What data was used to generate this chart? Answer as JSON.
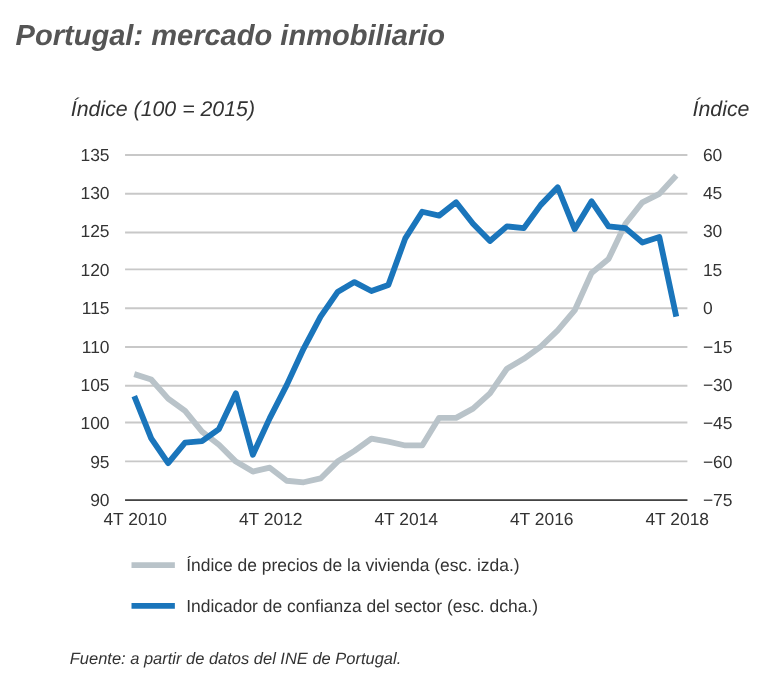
{
  "chart_data": {
    "type": "line",
    "title": "Portugal: mercado inmobiliario",
    "ylabel": "Índice (100 = 2015)",
    "y2label": "Índice",
    "categories": [
      "4T 2010",
      null,
      null,
      null,
      null,
      null,
      null,
      null,
      "4T 2012",
      null,
      null,
      null,
      null,
      null,
      null,
      null,
      "4T 2014",
      null,
      null,
      null,
      null,
      null,
      null,
      null,
      "4T 2016",
      null,
      null,
      null,
      null,
      null,
      null,
      null,
      "4T 2018"
    ],
    "series": [
      {
        "name": "Índice de precios de la vivienda (esc. izda.)",
        "color": "#b9c3c9",
        "values": [
          106.3,
          105.6,
          103.1,
          101.5,
          98.8,
          97.1,
          94.9,
          93.6,
          94.1,
          92.4,
          92.2,
          92.7,
          94.9,
          96.3,
          97.9,
          97.5,
          97.0,
          97.0,
          100.6,
          100.6,
          101.8,
          103.8,
          107.0,
          108.3,
          109.9,
          112.0,
          114.6,
          119.5,
          121.3,
          125.9,
          128.7,
          129.8,
          132.2
        ]
      },
      {
        "name": "Indicador de confianza del sector (esc. dcha.)",
        "color": "#1a75bb",
        "axis": "y2",
        "values": [
          -34.7,
          -51.2,
          -60.9,
          -52.9,
          -52.3,
          -47.6,
          -33.6,
          -57.6,
          -43.3,
          -30.4,
          -16.1,
          -3.6,
          6.0,
          9.9,
          6.4,
          8.8,
          27,
          37.4,
          35.9,
          41.1,
          32.7,
          26.0,
          31.7,
          31.0,
          40.1,
          47.0,
          30.6,
          41.5,
          31.7,
          31.0,
          25.4,
          27.5,
          -3.6
        ]
      }
    ],
    "ylim": [
      90,
      135
    ],
    "yticks": [
      90,
      95,
      100,
      105,
      110,
      115,
      120,
      125,
      130,
      135
    ],
    "y2lim": [
      -75,
      60
    ],
    "y2ticks": [
      -75,
      -60,
      -45,
      -30,
      -15,
      0,
      15,
      30,
      45,
      60
    ],
    "grid": "y",
    "legend": "bottom",
    "line_style": "solid",
    "marker": "none",
    "annotations": [
      "Fuente: a partir de datos del INE de Portugal."
    ]
  }
}
